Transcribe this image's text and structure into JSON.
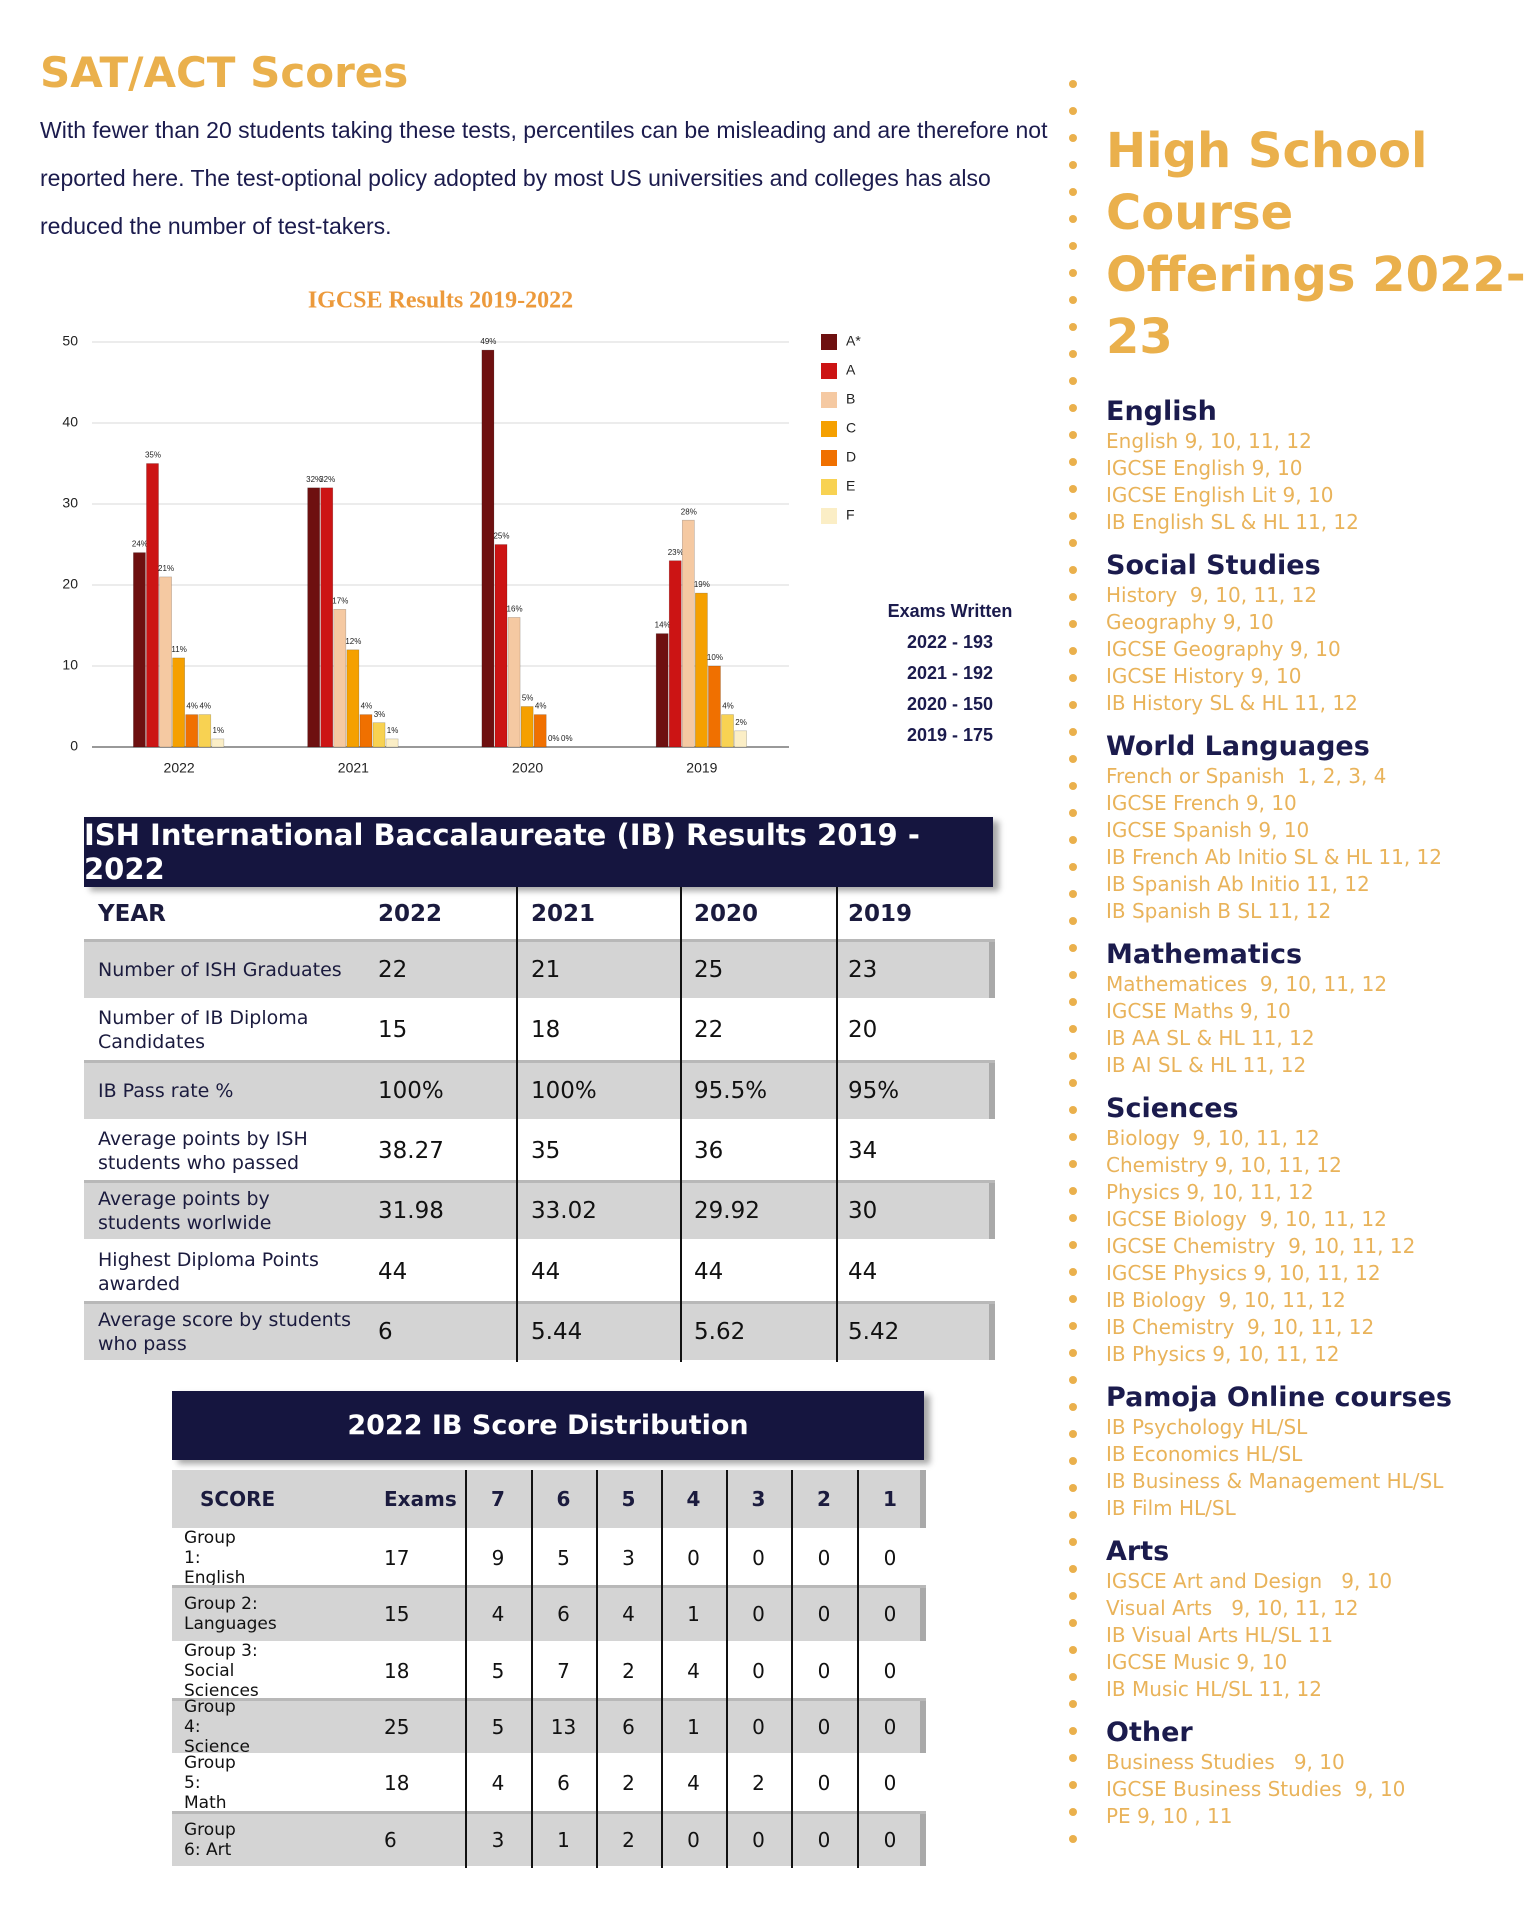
{
  "header": {
    "title": "SAT/ACT Scores",
    "text": "With fewer than 20 students taking these tests, percentiles can be misleading and are therefore not reported here.  The test-optional policy adopted by most US universities and colleges has also reduced the number of test-takers."
  },
  "chart_data": {
    "type": "bar",
    "title": "IGCSE Results 2019-2022",
    "categories": [
      "2022",
      "2021",
      "2020",
      "2019"
    ],
    "series": [
      {
        "name": "A*",
        "color": "#6e1010",
        "values": [
          24,
          32,
          49,
          14
        ],
        "value_labels": [
          "24%",
          "32%",
          "49%",
          "14%"
        ]
      },
      {
        "name": "A",
        "color": "#cc1414",
        "values": [
          35,
          32,
          25,
          23
        ],
        "value_labels": [
          "35%",
          "32%",
          "25%",
          "23%"
        ]
      },
      {
        "name": "B",
        "color": "#f5c9a2",
        "values": [
          21,
          17,
          16,
          28
        ],
        "value_labels": [
          "21%",
          "17%",
          "16%",
          "28%"
        ]
      },
      {
        "name": "C",
        "color": "#f5a000",
        "values": [
          11,
          12,
          5,
          19
        ],
        "value_labels": [
          "11%",
          "12%",
          "5%",
          "19%"
        ]
      },
      {
        "name": "D",
        "color": "#f07000",
        "values": [
          4,
          4,
          4,
          10
        ],
        "value_labels": [
          "4%",
          "4%",
          "4%",
          "10%"
        ]
      },
      {
        "name": "E",
        "color": "#f8d252",
        "values": [
          4,
          3,
          0,
          4
        ],
        "value_labels": [
          "4%",
          "3%",
          "0%",
          "4%"
        ]
      },
      {
        "name": "F",
        "color": "#fbeec6",
        "values": [
          1,
          1,
          0,
          2
        ],
        "value_labels": [
          "1%",
          "1%",
          "0%",
          "2%"
        ]
      }
    ],
    "ylim": [
      0,
      50
    ],
    "yticks": [
      0,
      10,
      20,
      30,
      40,
      50
    ],
    "grid": true,
    "legend": "right",
    "annotations": [
      "Exams Written",
      "2022 - 193",
      "2021 - 192",
      "2020 - 150",
      "2019 - 175"
    ]
  },
  "ib_results": {
    "title": "ISH International Baccalaureate (IB) Results 2019 - 2022",
    "columns": [
      "YEAR",
      "2022",
      "2021",
      "2020",
      "2019"
    ],
    "rows": [
      [
        "Number of ISH Graduates",
        "22",
        "21",
        "25",
        "23"
      ],
      [
        "Number of IB Diploma Candidates",
        "15",
        "18",
        "22",
        "20"
      ],
      [
        "IB Pass rate %",
        "100%",
        "100%",
        "95.5%",
        "95%"
      ],
      [
        "Average points by ISH students who passed",
        "38.27",
        "35",
        "36",
        "34"
      ],
      [
        "Average points by students worlwide",
        "31.98",
        "33.02",
        "29.92",
        "30"
      ],
      [
        "Highest Diploma Points awarded",
        "44",
        "44",
        "44",
        "44"
      ],
      [
        "Average score by students who pass",
        "6",
        "5.44",
        "5.62",
        "5.42"
      ]
    ]
  },
  "score_distribution": {
    "title": "2022 IB Score Distribution",
    "columns": [
      "SCORE",
      "Exams",
      "7",
      "6",
      "5",
      "4",
      "3",
      "2",
      "1"
    ],
    "rows": [
      [
        "Group 1: English",
        "17",
        "9",
        "5",
        "3",
        "0",
        "0",
        "0",
        "0"
      ],
      [
        "Group 2: Languages",
        "15",
        "4",
        "6",
        "4",
        "1",
        "0",
        "0",
        "0"
      ],
      [
        "Group 3: Social Sciences",
        "18",
        "5",
        "7",
        "2",
        "4",
        "0",
        "0",
        "0"
      ],
      [
        "Group 4: Science",
        "25",
        "5",
        "13",
        "6",
        "1",
        "0",
        "0",
        "0"
      ],
      [
        "Group 5: Math",
        "18",
        "4",
        "6",
        "2",
        "4",
        "2",
        "0",
        "0"
      ],
      [
        "Group 6: Art",
        "6",
        "3",
        "1",
        "2",
        "0",
        "0",
        "0",
        "0"
      ]
    ]
  },
  "courses": {
    "title": "High School Course Offerings 2022-23",
    "sections": [
      {
        "heading": "English",
        "items": [
          "English 9, 10, 11, 12",
          "IGCSE English 9, 10",
          "IGCSE English Lit 9, 10",
          "IB English SL & HL 11, 12"
        ]
      },
      {
        "heading": "Social Studies",
        "items": [
          "History  9, 10, 11, 12",
          "Geography 9, 10",
          "IGCSE Geography 9, 10",
          "IGCSE History 9, 10",
          "IB History SL & HL 11, 12"
        ]
      },
      {
        "heading": "World Languages",
        "items": [
          "French or Spanish  1, 2, 3, 4",
          "IGCSE French 9, 10",
          "IGCSE Spanish 9, 10",
          "IB French Ab Initio SL & HL 11, 12",
          "IB Spanish Ab Initio 11, 12",
          "IB Spanish B SL 11, 12"
        ]
      },
      {
        "heading": "Mathematics",
        "items": [
          "Mathematices  9, 10, 11, 12",
          "IGCSE Maths 9, 10",
          "IB AA SL & HL 11, 12",
          "IB AI SL & HL 11, 12"
        ]
      },
      {
        "heading": "Sciences",
        "items": [
          "Biology  9, 10, 11, 12",
          "Chemistry 9, 10, 11, 12",
          "Physics 9, 10, 11, 12",
          "IGCSE Biology  9, 10, 11, 12",
          "IGCSE Chemistry  9, 10, 11, 12",
          "IGCSE Physics 9, 10, 11, 12",
          "IB Biology  9, 10, 11, 12",
          "IB Chemistry  9, 10, 11, 12",
          "IB Physics 9, 10, 11, 12"
        ]
      },
      {
        "heading": "Pamoja Online courses",
        "items": [
          "IB Psychology HL/SL",
          "IB Economics HL/SL",
          "IB Business & Management HL/SL",
          "IB Film HL/SL"
        ]
      },
      {
        "heading": "Arts",
        "items": [
          "IGSCE Art and Design   9, 10",
          "Visual Arts   9, 10, 11, 12",
          "IB Visual Arts HL/SL 11",
          "IGCSE Music 9, 10",
          "IB Music HL/SL 11, 12"
        ]
      },
      {
        "heading": "Other",
        "items": [
          "Business Studies   9, 10",
          "IGCSE Business Studies  9, 10",
          "PE 9, 10 , 11"
        ]
      }
    ]
  }
}
